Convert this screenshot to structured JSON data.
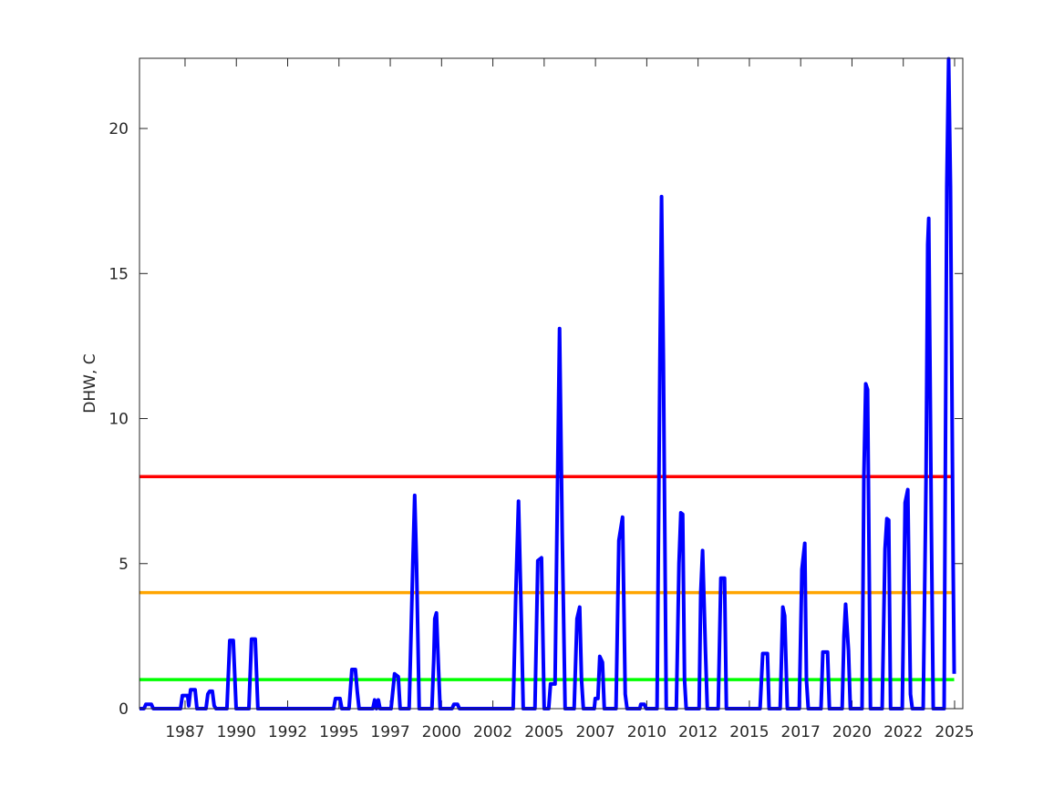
{
  "chart_data": {
    "type": "line",
    "y_label": "DHW, C",
    "xlim": [
      1985.28,
      2025.4
    ],
    "ylim": [
      0,
      22.42
    ],
    "yticks": [
      0,
      5,
      10,
      15,
      20
    ],
    "xticks": [
      {
        "value": 1987.5,
        "label": "1987"
      },
      {
        "value": 1990,
        "label": "1990"
      },
      {
        "value": 1992.5,
        "label": "1992"
      },
      {
        "value": 1995,
        "label": "1995"
      },
      {
        "value": 1997.5,
        "label": "1997"
      },
      {
        "value": 2000,
        "label": "2000"
      },
      {
        "value": 2002.5,
        "label": "2002"
      },
      {
        "value": 2005,
        "label": "2005"
      },
      {
        "value": 2007.5,
        "label": "2007"
      },
      {
        "value": 2010,
        "label": "2010"
      },
      {
        "value": 2012.5,
        "label": "2012"
      },
      {
        "value": 2015,
        "label": "2015"
      },
      {
        "value": 2017.5,
        "label": "2017"
      },
      {
        "value": 2020,
        "label": "2020"
      },
      {
        "value": 2022.5,
        "label": "2022"
      },
      {
        "value": 2025,
        "label": "2025"
      }
    ],
    "reference_lines": [
      {
        "value": 8,
        "color": "#ff0000"
      },
      {
        "value": 4,
        "color": "#ffa500"
      },
      {
        "value": 1,
        "color": "#00ff00"
      }
    ],
    "x": [
      1985.28,
      1985.5,
      1985.59,
      1985.86,
      1985.95,
      1987.28,
      1987.37,
      1987.63,
      1987.68,
      1987.77,
      1987.99,
      1988.08,
      1988.52,
      1988.61,
      1988.7,
      1988.83,
      1988.92,
      1989.01,
      1989.54,
      1989.68,
      1989.85,
      1989.99,
      1990.61,
      1990.74,
      1990.92,
      1991.05,
      1994.74,
      1994.83,
      1995.05,
      1995.14,
      1995.49,
      1995.63,
      1995.8,
      1995.89,
      1995.98,
      1996.65,
      1996.74,
      1996.83,
      1996.92,
      1997.0,
      1997.54,
      1997.71,
      1997.89,
      1997.98,
      1998.42,
      1998.6,
      1998.69,
      1998.78,
      1998.91,
      1999.53,
      1999.62,
      1999.67,
      1999.75,
      1999.84,
      1999.93,
      2000.51,
      2000.6,
      2000.78,
      2000.87,
      2003.49,
      2003.62,
      2003.75,
      2003.89,
      2003.98,
      2004.55,
      2004.69,
      2004.87,
      2005.0,
      2005.22,
      2005.31,
      2005.53,
      2005.62,
      2005.75,
      2005.88,
      2006.02,
      2006.46,
      2006.6,
      2006.73,
      2006.82,
      2006.91,
      2007.44,
      2007.49,
      2007.62,
      2007.71,
      2007.84,
      2007.93,
      2008.5,
      2008.64,
      2008.82,
      2008.95,
      2009.04,
      2009.66,
      2009.71,
      2009.88,
      2009.97,
      2010.5,
      2010.64,
      2010.72,
      2010.81,
      2010.95,
      2011.44,
      2011.57,
      2011.66,
      2011.75,
      2011.84,
      2011.92,
      2012.55,
      2012.63,
      2012.72,
      2012.86,
      2012.95,
      2013.48,
      2013.61,
      2013.79,
      2013.88,
      2015.52,
      2015.65,
      2015.88,
      2015.96,
      2016.5,
      2016.63,
      2016.72,
      2016.85,
      2017.43,
      2017.56,
      2017.7,
      2017.78,
      2017.87,
      2018.49,
      2018.58,
      2018.81,
      2018.9,
      2019.52,
      2019.61,
      2019.69,
      2019.83,
      2019.92,
      2020.49,
      2020.58,
      2020.67,
      2020.76,
      2020.9,
      2021.47,
      2021.61,
      2021.7,
      2021.79,
      2021.88,
      2022.45,
      2022.59,
      2022.72,
      2022.85,
      2022.94,
      2023.47,
      2023.61,
      2023.69,
      2023.74,
      2023.87,
      2023.96,
      2024.49,
      2024.62,
      2024.71,
      2024.8,
      2024.93,
      2024.98
    ],
    "series": [
      {
        "color": "#0000ff",
        "values": [
          0,
          0,
          0.15,
          0.15,
          0,
          0,
          0.45,
          0.45,
          0.1,
          0.65,
          0.65,
          0,
          0,
          0.5,
          0.6,
          0.6,
          0.1,
          0,
          0,
          2.35,
          2.35,
          0,
          0,
          2.4,
          2.4,
          0,
          0,
          0.35,
          0.35,
          0,
          0,
          1.35,
          1.35,
          0.6,
          0,
          0,
          0.3,
          0,
          0.3,
          0,
          0,
          1.2,
          1.1,
          0,
          0,
          5,
          7.35,
          5,
          0,
          0,
          1.7,
          3.1,
          3.3,
          1.6,
          0,
          0,
          0.15,
          0.15,
          0,
          0,
          4,
          7.15,
          3,
          0,
          0,
          5.1,
          5.2,
          0,
          0,
          0.85,
          0.85,
          6,
          13.1,
          6,
          0,
          0,
          3.1,
          3.5,
          1,
          0,
          0,
          0.35,
          0.35,
          1.8,
          1.6,
          0,
          0,
          5.8,
          6.6,
          0.5,
          0,
          0,
          0.15,
          0.15,
          0,
          0,
          12,
          17.65,
          12,
          0,
          0,
          5,
          6.75,
          6.7,
          1,
          0,
          0,
          4,
          5.45,
          2,
          0,
          0,
          4.5,
          4.5,
          0,
          0,
          1.9,
          1.9,
          0,
          0,
          3.5,
          3.2,
          0,
          0,
          4.8,
          5.7,
          1,
          0,
          0,
          1.95,
          1.95,
          0,
          0,
          2.5,
          3.6,
          2,
          0,
          0,
          8,
          11.2,
          11,
          0,
          0,
          5.5,
          6.55,
          6.5,
          0,
          0,
          7.1,
          7.55,
          0.5,
          0,
          0,
          8,
          16,
          16.9,
          6.2,
          0,
          0,
          18,
          22.4,
          18,
          5,
          1.2
        ]
      }
    ]
  }
}
